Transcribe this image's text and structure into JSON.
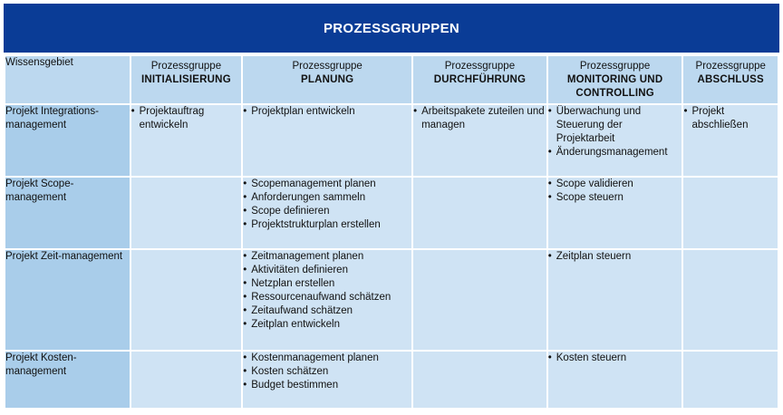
{
  "title": "PROZESSGRUPPEN",
  "header": {
    "first": "Wissensgebiet",
    "columns": [
      {
        "top": "Prozessgruppe",
        "bold": "INITIALISIERUNG"
      },
      {
        "top": "Prozessgruppe",
        "bold": "PLANUNG"
      },
      {
        "top": "Prozessgruppe",
        "bold": "DURCHFÜHRUNG"
      },
      {
        "top": "Prozessgruppe",
        "bold": "MONITORING UND CONTROLLING"
      },
      {
        "top": "Prozessgruppe",
        "bold": "ABSCHLUSS"
      }
    ]
  },
  "rows": [
    {
      "area": "Projekt Integrations-management",
      "cells": [
        [
          "Projektauftrag entwickeln"
        ],
        [
          "Projektplan entwickeln"
        ],
        [
          "Arbeitspakete zuteilen und managen"
        ],
        [
          "Überwachung und Steuerung der Projektarbeit",
          "Änderungsmanagement"
        ],
        [
          "Projekt abschließen"
        ]
      ]
    },
    {
      "area": "Projekt Scope-management",
      "cells": [
        [],
        [
          "Scopemanagement planen",
          "Anforderungen sammeln",
          "Scope definieren",
          "Projektstrukturplan erstellen"
        ],
        [],
        [
          "Scope validieren",
          "Scope steuern"
        ],
        []
      ]
    },
    {
      "area": "Projekt Zeit-management",
      "cells": [
        [],
        [
          "Zeitmanagement planen",
          "Aktivitäten definieren",
          "Netzplan erstellen",
          "Ressourcenaufwand schätzen",
          "Zeitaufwand schätzen",
          "Zeitplan entwickeln"
        ],
        [],
        [
          "Zeitplan steuern"
        ],
        []
      ]
    },
    {
      "area": "Projekt Kosten-management",
      "cells": [
        [],
        [
          "Kostenmanagement planen",
          "Kosten schätzen",
          "Budget bestimmen"
        ],
        [],
        [
          "Kosten steuern"
        ],
        []
      ]
    }
  ]
}
